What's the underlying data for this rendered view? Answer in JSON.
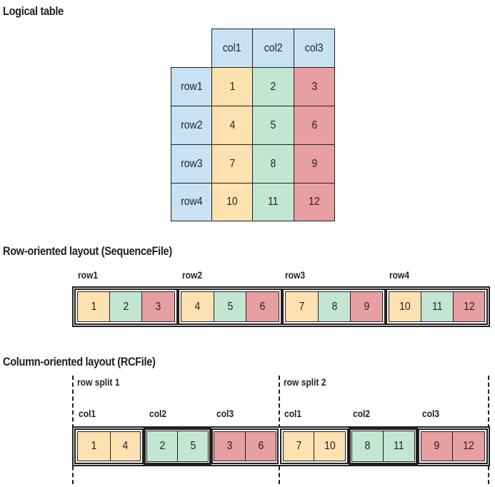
{
  "logical_table": {
    "title": "Logical table",
    "columns": [
      "col1",
      "col2",
      "col3"
    ],
    "rows": [
      {
        "label": "row1",
        "values": [
          "1",
          "2",
          "3"
        ]
      },
      {
        "label": "row2",
        "values": [
          "4",
          "5",
          "6"
        ]
      },
      {
        "label": "row3",
        "values": [
          "7",
          "8",
          "9"
        ]
      },
      {
        "label": "row4",
        "values": [
          "10",
          "11",
          "12"
        ]
      }
    ]
  },
  "row_layout": {
    "title": "Row-oriented layout (SequenceFile)",
    "groups": [
      {
        "label": "row1",
        "values": [
          "1",
          "2",
          "3"
        ]
      },
      {
        "label": "row2",
        "values": [
          "4",
          "5",
          "6"
        ]
      },
      {
        "label": "row3",
        "values": [
          "7",
          "8",
          "9"
        ]
      },
      {
        "label": "row4",
        "values": [
          "10",
          "11",
          "12"
        ]
      }
    ]
  },
  "column_layout": {
    "title": "Column-oriented layout (RCFile)",
    "splits": [
      {
        "label": "row split 1",
        "columns": [
          {
            "label": "col1",
            "values": [
              "1",
              "4"
            ]
          },
          {
            "label": "col2",
            "values": [
              "2",
              "5"
            ]
          },
          {
            "label": "col3",
            "values": [
              "3",
              "6"
            ]
          }
        ]
      },
      {
        "label": "row split 2",
        "columns": [
          {
            "label": "col1",
            "values": [
              "7",
              "10"
            ]
          },
          {
            "label": "col2",
            "values": [
              "8",
              "11"
            ]
          },
          {
            "label": "col3",
            "values": [
              "9",
              "12"
            ]
          }
        ]
      }
    ]
  },
  "colors": {
    "header": "#c8e2f4",
    "col1": "#fde1b0",
    "col2": "#c3e6d2",
    "col3": "#e89fa1",
    "line": "#231f20"
  }
}
